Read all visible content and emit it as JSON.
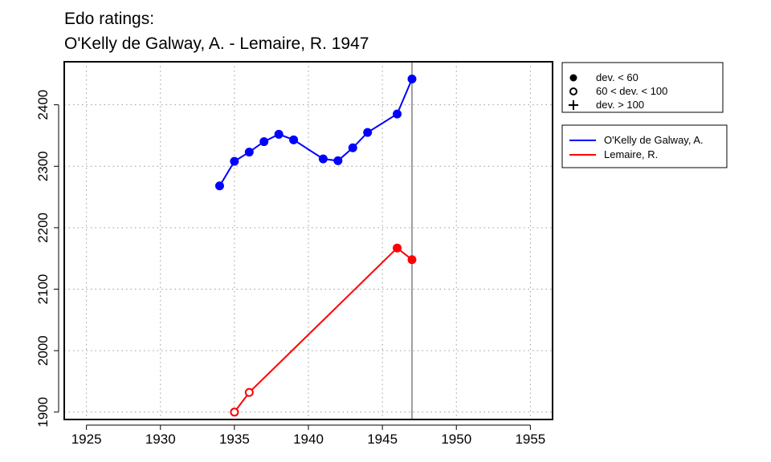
{
  "chart_data": {
    "type": "line",
    "title_lines": [
      "Edo ratings:",
      "O'Kelly de Galway, A. - Lemaire, R. 1947"
    ],
    "xlim": [
      1923.5,
      1956.5
    ],
    "ylim": [
      1888,
      2470
    ],
    "x_ticks": [
      1925,
      1930,
      1935,
      1940,
      1945,
      1950,
      1955
    ],
    "y_ticks": [
      1900,
      2000,
      2100,
      2200,
      2300,
      2400
    ],
    "grid": true,
    "reference_line_x": 1947,
    "marker_legend": [
      {
        "symbol": "filled-circle",
        "label": "dev. < 60"
      },
      {
        "symbol": "open-circle",
        "label": "60 < dev. < 100"
      },
      {
        "symbol": "plus",
        "label": "dev. > 100"
      }
    ],
    "series": [
      {
        "name": "O'Kelly de Galway, A.",
        "color": "#0000ff",
        "points": [
          {
            "x": 1934,
            "y": 2268,
            "marker": "filled-circle"
          },
          {
            "x": 1935,
            "y": 2308,
            "marker": "filled-circle"
          },
          {
            "x": 1936,
            "y": 2323,
            "marker": "filled-circle"
          },
          {
            "x": 1937,
            "y": 2340,
            "marker": "filled-circle"
          },
          {
            "x": 1938,
            "y": 2352,
            "marker": "filled-circle"
          },
          {
            "x": 1939,
            "y": 2343,
            "marker": "filled-circle"
          },
          {
            "x": 1941,
            "y": 2312,
            "marker": "filled-circle"
          },
          {
            "x": 1942,
            "y": 2309,
            "marker": "filled-circle"
          },
          {
            "x": 1943,
            "y": 2330,
            "marker": "filled-circle"
          },
          {
            "x": 1944,
            "y": 2355,
            "marker": "filled-circle"
          },
          {
            "x": 1946,
            "y": 2385,
            "marker": "filled-circle"
          },
          {
            "x": 1947,
            "y": 2442,
            "marker": "filled-circle"
          }
        ]
      },
      {
        "name": "Lemaire, R.",
        "color": "#ff0000",
        "points": [
          {
            "x": 1935,
            "y": 1900,
            "marker": "open-circle"
          },
          {
            "x": 1936,
            "y": 1932,
            "marker": "open-circle"
          },
          {
            "x": 1946,
            "y": 2167,
            "marker": "filled-circle"
          },
          {
            "x": 1947,
            "y": 2148,
            "marker": "filled-circle"
          }
        ]
      }
    ]
  }
}
